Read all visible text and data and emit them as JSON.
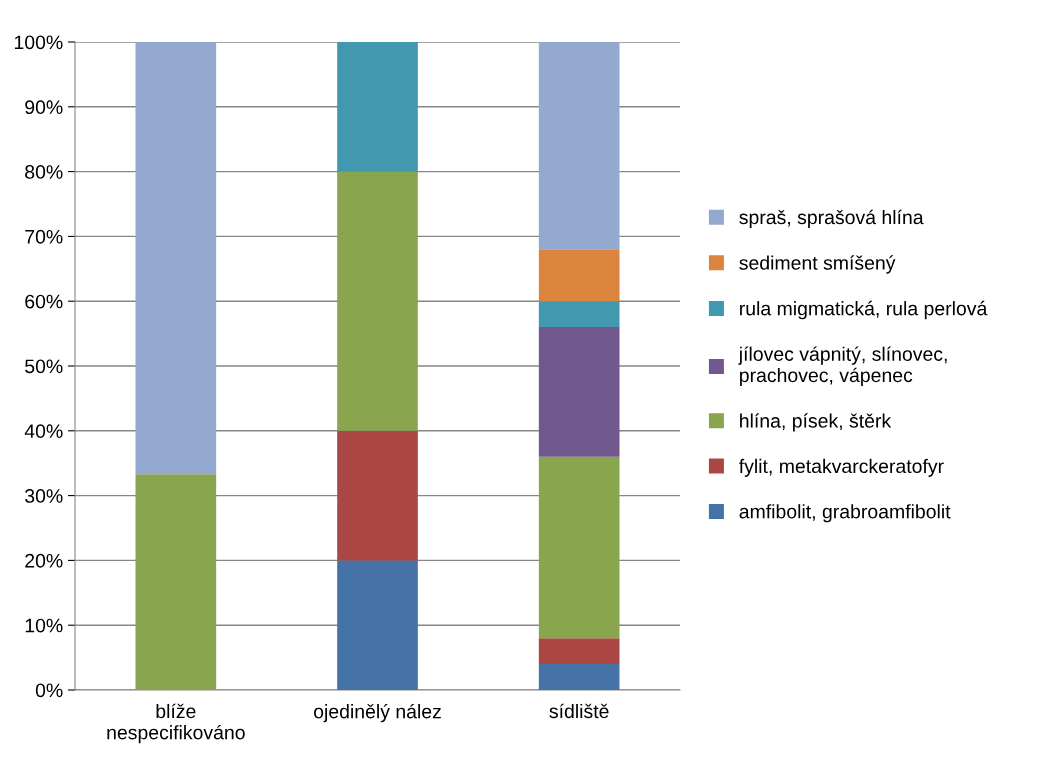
{
  "chart_data": {
    "type": "bar",
    "stacked": true,
    "categories": [
      "blíže\nnespecifikováno",
      "ojedinělý nález",
      "sídliště"
    ],
    "series": [
      {
        "name": "amfibolit, grabroamfibolit",
        "color": "#4572a7",
        "values": [
          0,
          20,
          4
        ]
      },
      {
        "name": "fylit, metakvarckeratofyr",
        "color": "#aa4643",
        "values": [
          0,
          20,
          4
        ]
      },
      {
        "name": "hlína, písek, štěrk",
        "color": "#89a54e",
        "values": [
          33.3,
          40,
          28
        ]
      },
      {
        "name": "jílovec vápnitý, slínovec,\nprachovec, vápenec",
        "color": "#71588f",
        "values": [
          0,
          0,
          20
        ]
      },
      {
        "name": "rula migmatická, rula perlová",
        "color": "#4198af",
        "values": [
          0,
          20,
          4
        ]
      },
      {
        "name": "sediment smíšený",
        "color": "#db843d",
        "values": [
          0,
          0,
          8
        ]
      },
      {
        "name": "spraš, sprašová hlína",
        "color": "#93a9cf",
        "values": [
          66.7,
          0,
          32
        ]
      }
    ],
    "ylim": [
      0,
      100
    ],
    "yticks": [
      {
        "value": 0,
        "label": "0%"
      },
      {
        "value": 10,
        "label": "10%"
      },
      {
        "value": 20,
        "label": "20%"
      },
      {
        "value": 30,
        "label": "30%"
      },
      {
        "value": 40,
        "label": "40%"
      },
      {
        "value": 50,
        "label": "50%"
      },
      {
        "value": 60,
        "label": "60%"
      },
      {
        "value": 70,
        "label": "70%"
      },
      {
        "value": 80,
        "label": "80%"
      },
      {
        "value": 90,
        "label": "90%"
      },
      {
        "value": 100,
        "label": "100%"
      }
    ],
    "grid": "y",
    "legend": "right"
  }
}
